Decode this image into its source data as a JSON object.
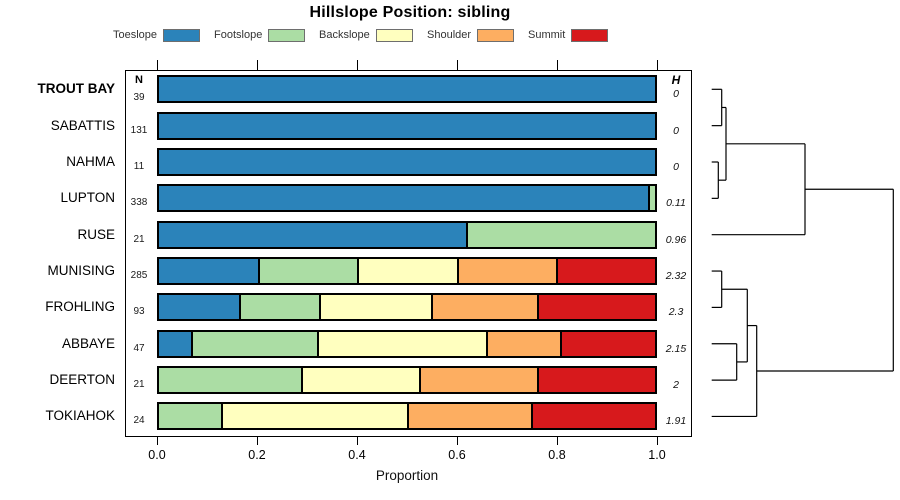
{
  "chart_data": {
    "type": "bar",
    "orientation": "horizontal-stacked",
    "title": "Hillslope Position: sibling",
    "xlabel": "Proportion",
    "xlim": [
      0.0,
      1.0
    ],
    "x_ticks": [
      "0.0",
      "0.2",
      "0.4",
      "0.6",
      "0.8",
      "1.0"
    ],
    "n_header": "N",
    "h_header": "H",
    "categories": [
      {
        "label": "Toeslope",
        "color": "#2B83BA"
      },
      {
        "label": "Footslope",
        "color": "#ABDDA4"
      },
      {
        "label": "Backslope",
        "color": "#FFFFBF"
      },
      {
        "label": "Shoulder",
        "color": "#FDAE61"
      },
      {
        "label": "Summit",
        "color": "#D7191C"
      }
    ],
    "rows": [
      {
        "name": "TROUT BAY",
        "bold": true,
        "n": 39,
        "h": "0",
        "segments": [
          {
            "cat": "Toeslope",
            "p": 1.0
          }
        ]
      },
      {
        "name": "SABATTIS",
        "bold": false,
        "n": 131,
        "h": "0",
        "segments": [
          {
            "cat": "Toeslope",
            "p": 1.0
          }
        ]
      },
      {
        "name": "NAHMA",
        "bold": false,
        "n": 11,
        "h": "0",
        "segments": [
          {
            "cat": "Toeslope",
            "p": 1.0
          }
        ]
      },
      {
        "name": "LUPTON",
        "bold": false,
        "n": 338,
        "h": "0.11",
        "segments": [
          {
            "cat": "Toeslope",
            "p": 0.985
          },
          {
            "cat": "Footslope",
            "p": 0.015
          }
        ]
      },
      {
        "name": "RUSE",
        "bold": false,
        "n": 21,
        "h": "0.96",
        "segments": [
          {
            "cat": "Toeslope",
            "p": 0.619
          },
          {
            "cat": "Footslope",
            "p": 0.381
          }
        ]
      },
      {
        "name": "MUNISING",
        "bold": false,
        "n": 285,
        "h": "2.32",
        "segments": [
          {
            "cat": "Toeslope",
            "p": 0.2
          },
          {
            "cat": "Footslope",
            "p": 0.2
          },
          {
            "cat": "Backslope",
            "p": 0.2
          },
          {
            "cat": "Shoulder",
            "p": 0.2
          },
          {
            "cat": "Summit",
            "p": 0.2
          }
        ]
      },
      {
        "name": "FROHLING",
        "bold": false,
        "n": 93,
        "h": "2.3",
        "segments": [
          {
            "cat": "Toeslope",
            "p": 0.161
          },
          {
            "cat": "Footslope",
            "p": 0.161
          },
          {
            "cat": "Backslope",
            "p": 0.226
          },
          {
            "cat": "Shoulder",
            "p": 0.215
          },
          {
            "cat": "Summit",
            "p": 0.237
          }
        ]
      },
      {
        "name": "ABBAYE",
        "bold": false,
        "n": 47,
        "h": "2.15",
        "segments": [
          {
            "cat": "Toeslope",
            "p": 0.064
          },
          {
            "cat": "Footslope",
            "p": 0.255
          },
          {
            "cat": "Backslope",
            "p": 0.34
          },
          {
            "cat": "Shoulder",
            "p": 0.149
          },
          {
            "cat": "Summit",
            "p": 0.192
          }
        ]
      },
      {
        "name": "DEERTON",
        "bold": false,
        "n": 21,
        "h": "2",
        "segments": [
          {
            "cat": "Footslope",
            "p": 0.286
          },
          {
            "cat": "Backslope",
            "p": 0.238
          },
          {
            "cat": "Shoulder",
            "p": 0.238
          },
          {
            "cat": "Summit",
            "p": 0.238
          }
        ]
      },
      {
        "name": "TOKIAHOK",
        "bold": false,
        "n": 24,
        "h": "1.91",
        "segments": [
          {
            "cat": "Footslope",
            "p": 0.125
          },
          {
            "cat": "Backslope",
            "p": 0.375
          },
          {
            "cat": "Shoulder",
            "p": 0.25
          },
          {
            "cat": "Summit",
            "p": 0.25
          }
        ]
      }
    ],
    "dendrogram": {
      "leaf_start_x": 711.7,
      "root": {
        "x": 893.3,
        "children": [
          {
            "x": 805,
            "children": [
              {
                "x": 726,
                "children": [
                  {
                    "x": 721.7,
                    "children": [
                      {
                        "leaf": 0
                      },
                      {
                        "leaf": 1
                      }
                    ]
                  },
                  {
                    "x": 718.3,
                    "children": [
                      {
                        "leaf": 2
                      },
                      {
                        "leaf": 3
                      }
                    ]
                  }
                ]
              },
              {
                "leaf": 4
              }
            ]
          },
          {
            "x": 756.7,
            "children": [
              {
                "x": 747.3,
                "children": [
                  {
                    "x": 721.7,
                    "children": [
                      {
                        "leaf": 5
                      },
                      {
                        "leaf": 6
                      }
                    ]
                  },
                  {
                    "x": 736.7,
                    "children": [
                      {
                        "leaf": 7
                      },
                      {
                        "leaf": 8
                      }
                    ]
                  }
                ]
              },
              {
                "leaf": 9
              }
            ]
          }
        ]
      }
    }
  }
}
